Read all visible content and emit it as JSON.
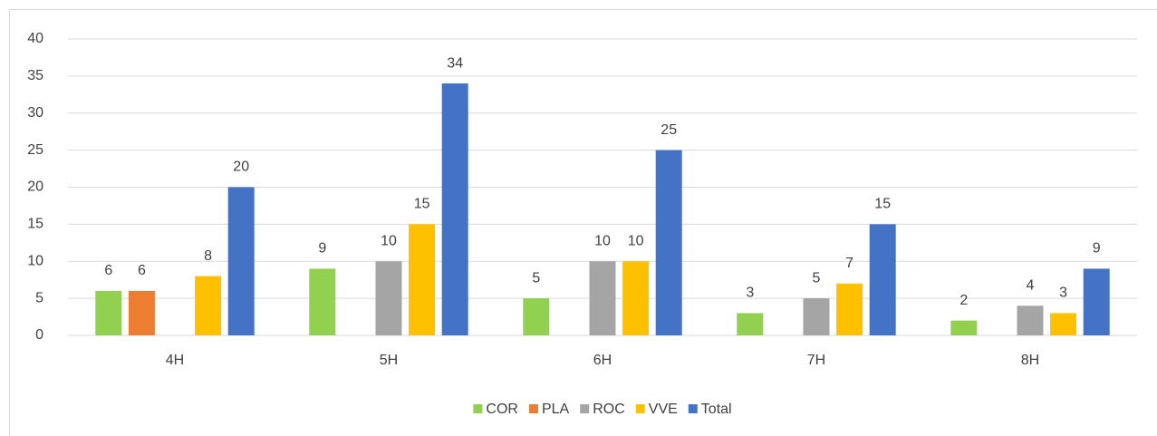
{
  "chart_data": {
    "type": "bar",
    "categories": [
      "4H",
      "5H",
      "6H",
      "7H",
      "8H"
    ],
    "series": [
      {
        "name": "COR",
        "color": "#92d050",
        "values": [
          6,
          9,
          5,
          3,
          2
        ]
      },
      {
        "name": "PLA",
        "color": "#ed7d31",
        "values": [
          6,
          null,
          null,
          null,
          null
        ]
      },
      {
        "name": "ROC",
        "color": "#a5a5a5",
        "values": [
          null,
          10,
          10,
          5,
          4
        ]
      },
      {
        "name": "VVE",
        "color": "#ffc000",
        "values": [
          8,
          15,
          10,
          7,
          3
        ]
      },
      {
        "name": "Total",
        "color": "#4472c4",
        "values": [
          20,
          34,
          25,
          15,
          9
        ]
      }
    ],
    "ylim": [
      0,
      40
    ],
    "yticks": [
      0,
      5,
      10,
      15,
      20,
      25,
      30,
      35,
      40
    ],
    "grid": true,
    "legend": "bottom"
  }
}
